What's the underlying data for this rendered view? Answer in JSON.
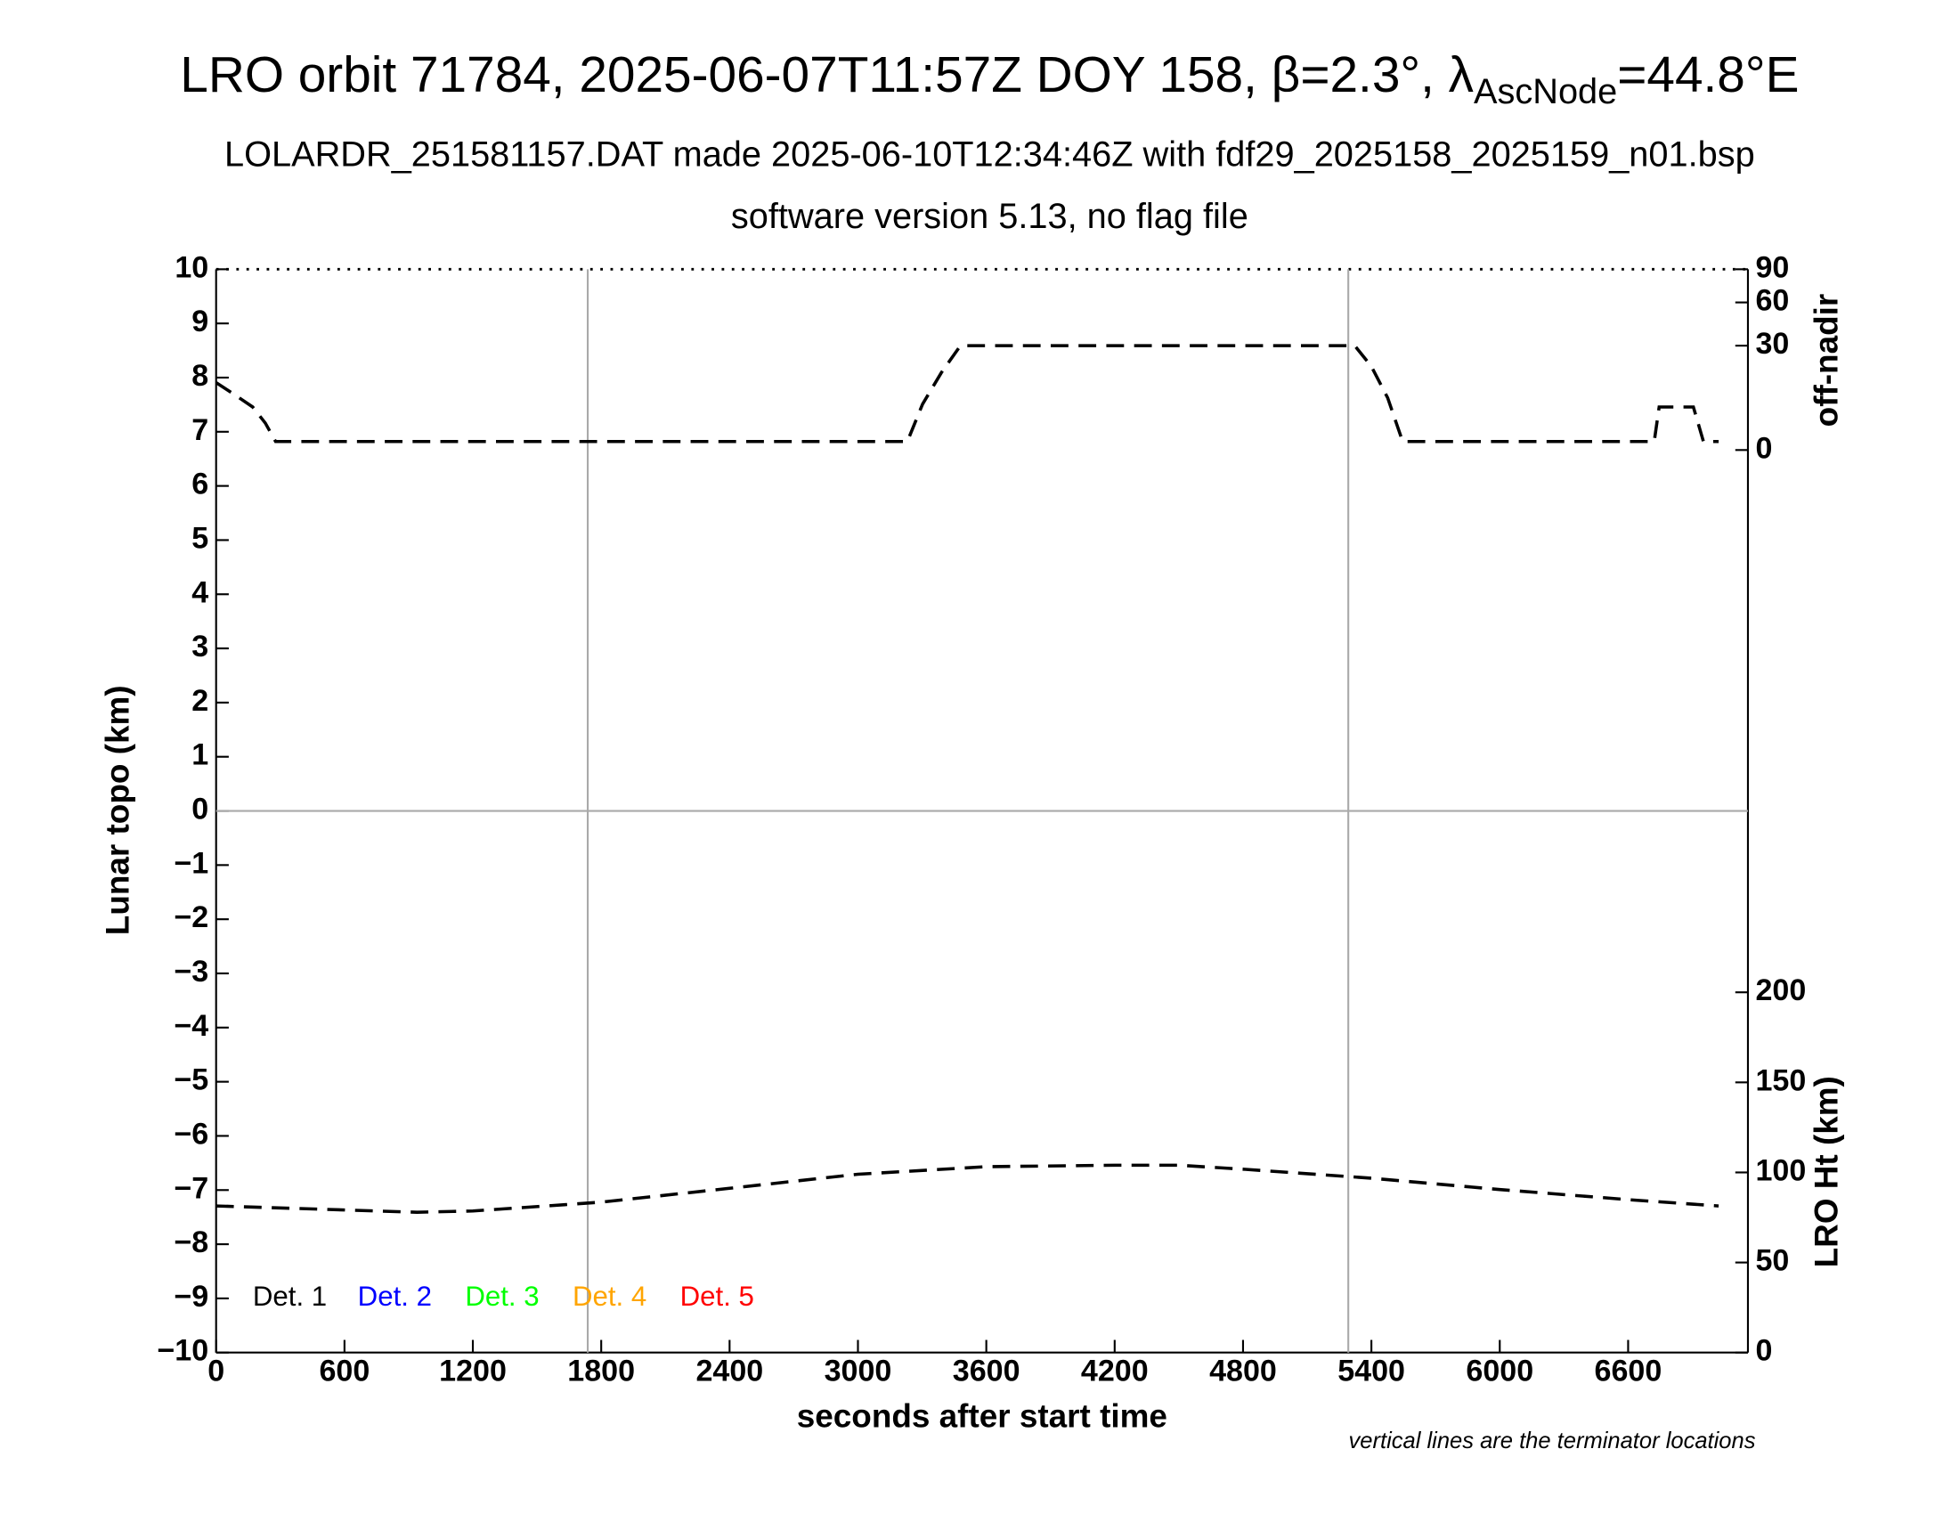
{
  "chart_data": {
    "type": "line",
    "title_parts": [
      "LRO orbit 71784, 2025-06-07T11:57Z DOY 158, β=2.3°, λ",
      "AscNode",
      "=44.8°E"
    ],
    "subtitle": "LOLARDR_251581157.DAT made 2025-06-10T12:34:46Z with fdf29_2025158_2025159_n01.bsp",
    "subtitle2": "software version 5.13, no flag file",
    "xlabel": "seconds after start time",
    "ylabel": "Lunar topo (km)",
    "y2label": "off-nadir",
    "y3label": "LRO Ht (km)",
    "note": "vertical lines are the terminator locations",
    "xlim": [
      0,
      7160
    ],
    "xticks": [
      0,
      600,
      1200,
      1800,
      2400,
      3000,
      3600,
      4200,
      4800,
      5400,
      6000,
      6600
    ],
    "ylim": [
      -10,
      10
    ],
    "yticks": [
      {
        "value": -10,
        "label": "−10"
      },
      {
        "value": -9,
        "label": "−9"
      },
      {
        "value": -8,
        "label": "−8"
      },
      {
        "value": -7,
        "label": "−7"
      },
      {
        "value": -6,
        "label": "−6"
      },
      {
        "value": -5,
        "label": "−5"
      },
      {
        "value": -4,
        "label": "−4"
      },
      {
        "value": -3,
        "label": "−3"
      },
      {
        "value": -2,
        "label": "−2"
      },
      {
        "value": -1,
        "label": "−1"
      },
      0,
      1,
      2,
      3,
      4,
      5,
      6,
      7,
      8,
      9,
      10
    ],
    "y2lim": [
      0,
      90
    ],
    "y2ticks": [
      0,
      30,
      60,
      90
    ],
    "y2scale": "sqrt",
    "y3lim": [
      0,
      200
    ],
    "y3ticks": [
      0,
      50,
      100,
      150,
      200
    ],
    "terminators": [
      1737,
      5292
    ],
    "series": [
      {
        "color": "#000000",
        "axis": "y2",
        "x": [
          0,
          83,
          171,
          230,
          278,
          3231,
          3302,
          3390,
          3479,
          5322,
          5399,
          5476,
          5546,
          6722,
          6745,
          6787,
          6905,
          6952,
          7023
        ],
        "values": [
          12.5,
          8.6,
          5.1,
          2.0,
          0.2,
          0.2,
          5.8,
          16.5,
          30,
          30,
          19.4,
          7.5,
          0.2,
          0.2,
          5.1,
          5.1,
          5.1,
          0.2,
          0.2
        ]
      },
      {
        "color": "#000000",
        "axis": "y3",
        "x": [
          0,
          939,
          1200,
          1800,
          2400,
          3000,
          3600,
          4200,
          4500,
          4800,
          5400,
          6000,
          6600,
          7023
        ],
        "values": [
          81.4,
          77.9,
          78.6,
          83.5,
          91.2,
          99,
          103.2,
          104,
          104,
          101.8,
          96.8,
          90.5,
          84.9,
          81.4
        ]
      }
    ],
    "legend": [
      {
        "name": "Det. 1",
        "color": "#000000"
      },
      {
        "name": "Det. 2",
        "color": "#0000ff"
      },
      {
        "name": "Det. 3",
        "color": "#00ff00"
      },
      {
        "name": "Det. 4",
        "color": "#ffa500"
      },
      {
        "name": "Det. 5",
        "color": "#ff0000"
      }
    ],
    "legend_position": "lower left"
  }
}
